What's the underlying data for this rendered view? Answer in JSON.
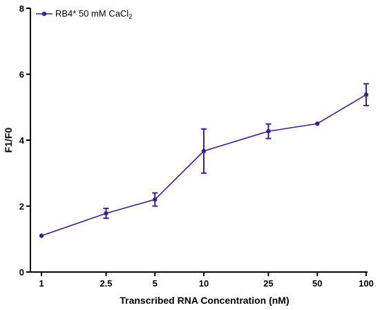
{
  "chart_data": {
    "type": "line",
    "title": "",
    "xlabel": "Transcribed RNA Concentration (nM)",
    "ylabel": "F1/F0",
    "categories": [
      "1",
      "2.5",
      "5",
      "10",
      "25",
      "50",
      "100"
    ],
    "ylim": [
      0,
      8
    ],
    "yticks": [
      "0",
      "2",
      "4",
      "6",
      "8"
    ],
    "grid": false,
    "legend_position": "top-left",
    "series": [
      {
        "name": "RB4* 50 mM CaCl",
        "name_subscript": "2",
        "color": "#3b1f9a",
        "values": [
          1.1,
          1.78,
          2.2,
          3.67,
          4.27,
          4.5,
          5.38
        ],
        "errors": [
          0,
          0.15,
          0.2,
          0.67,
          0.22,
          0,
          0.33
        ]
      }
    ]
  }
}
